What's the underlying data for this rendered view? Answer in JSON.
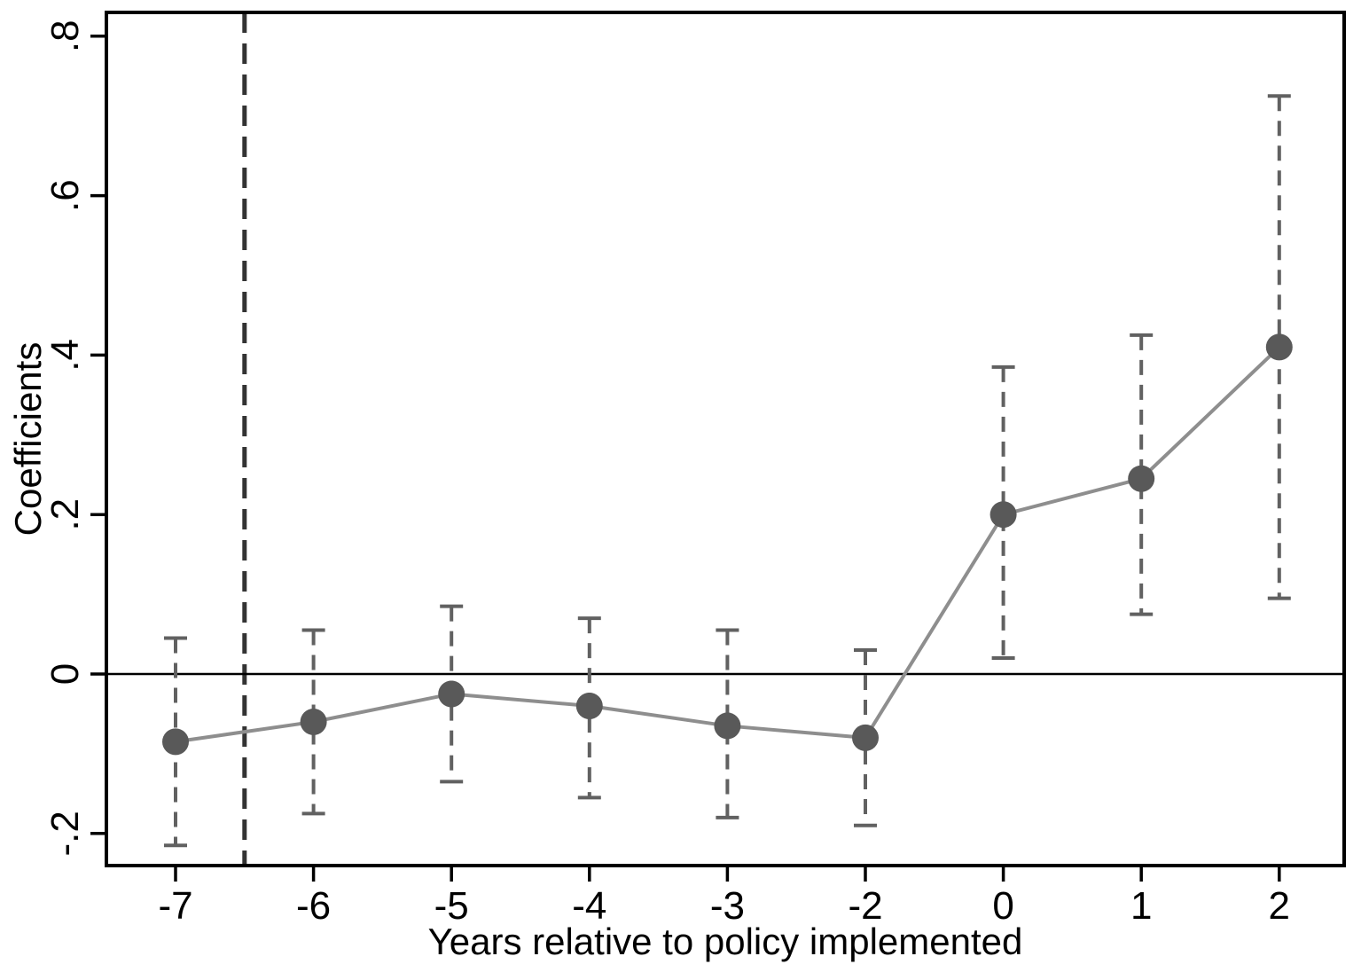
{
  "chart_data": {
    "type": "line",
    "subtype": "event-study coefficient plot with dashed confidence intervals",
    "title": "",
    "xlabel": "Years relative to policy implemented",
    "ylabel": "Coefficients",
    "categories": [
      "-7",
      "-6",
      "-5",
      "-4",
      "-3",
      "-2",
      "0",
      "1",
      "2"
    ],
    "series": [
      {
        "name": "Coefficients",
        "values": [
          -0.085,
          -0.06,
          -0.025,
          -0.04,
          -0.065,
          -0.08,
          0.2,
          0.245,
          0.41
        ],
        "ci_low": [
          -0.215,
          -0.175,
          -0.135,
          -0.155,
          -0.18,
          -0.19,
          0.02,
          0.075,
          0.095
        ],
        "ci_high": [
          0.045,
          0.055,
          0.085,
          0.07,
          0.055,
          0.03,
          0.385,
          0.425,
          0.725
        ]
      }
    ],
    "y_ticks": [
      {
        "value": 0.8,
        "label": ".8"
      },
      {
        "value": 0.6,
        "label": ".6"
      },
      {
        "value": 0.4,
        "label": ".4"
      },
      {
        "value": 0.2,
        "label": ".2"
      },
      {
        "value": 0,
        "label": "0"
      },
      {
        "value": -0.2,
        "label": "-.2"
      }
    ],
    "ylim": [
      -0.245,
      0.83
    ],
    "grid": false,
    "legend": "none",
    "reference_lines": [
      {
        "orientation": "horizontal",
        "value": 0,
        "style": "solid"
      },
      {
        "orientation": "vertical",
        "position": -6.5,
        "between_categories": [
          "-7",
          "-6"
        ],
        "style": "dashed"
      }
    ],
    "colors": {
      "marker": "#595959",
      "series_line": "#8e8e8e",
      "error_bar": "#616161",
      "reference_line_dashed": "#333333",
      "axis": "#000000",
      "background": "#ffffff"
    }
  }
}
